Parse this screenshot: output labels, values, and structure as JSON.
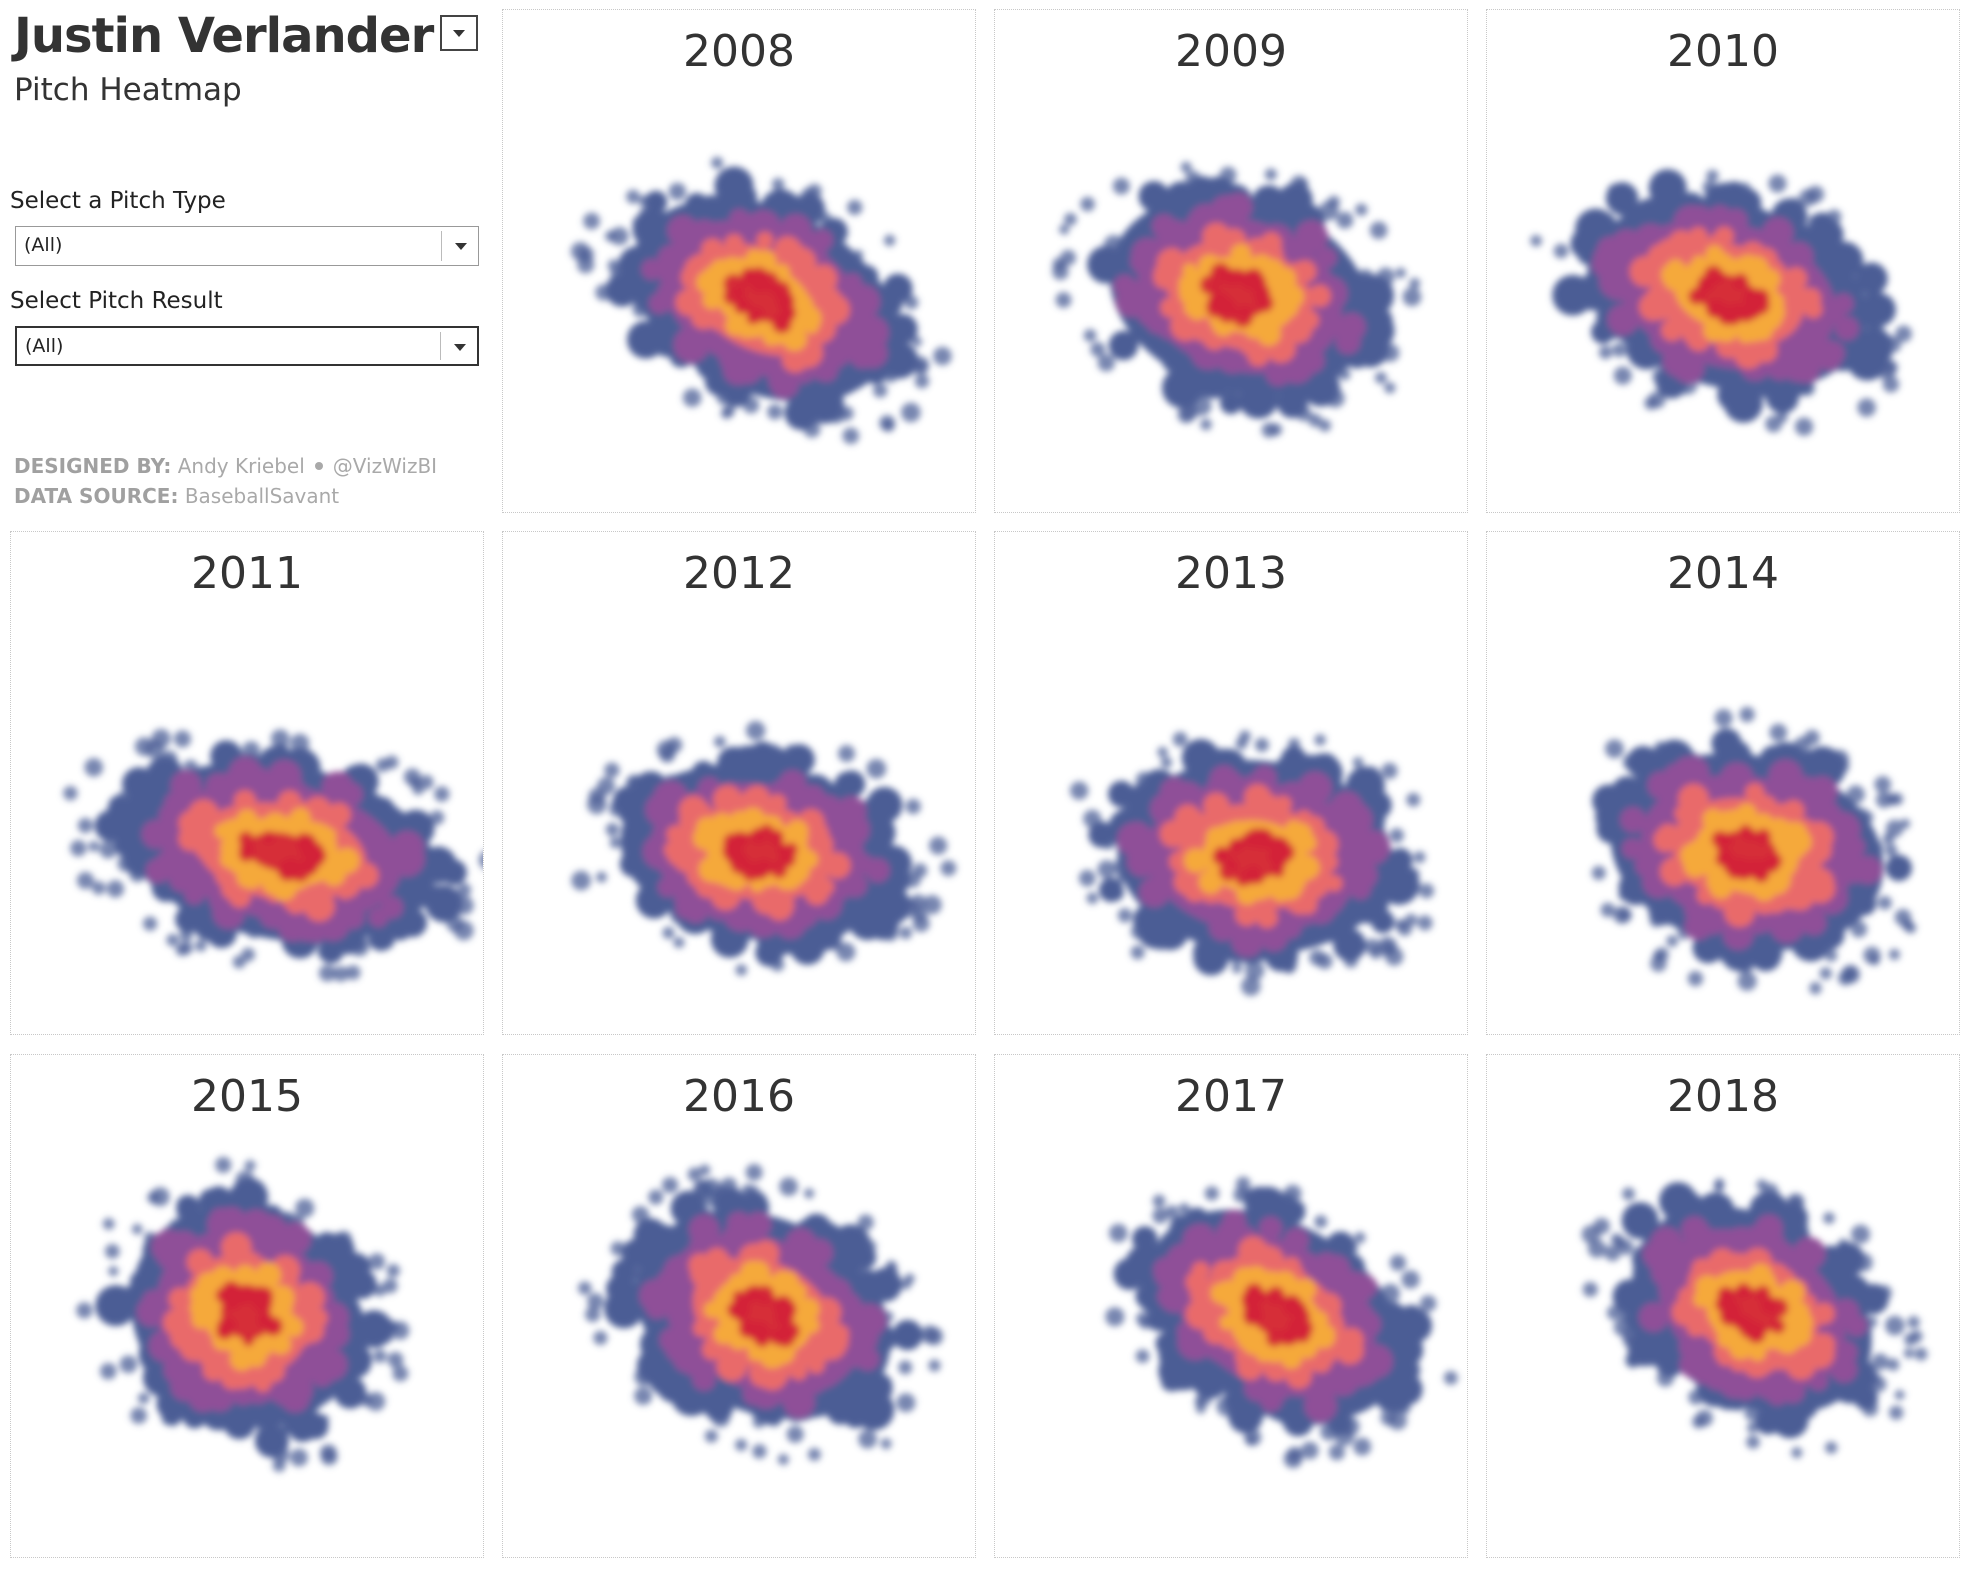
{
  "header": {
    "title": "Justin Verlander",
    "subtitle": "Pitch Heatmap"
  },
  "filters": {
    "pitch_type_label": "Select a Pitch Type",
    "pitch_type_value": "(All)",
    "pitch_result_label": "Select Pitch Result",
    "pitch_result_value": "(All)"
  },
  "credits": {
    "designed_by_label": "DESIGNED BY:",
    "designer": "Andy Kriebel",
    "handle": "@VizWizBI",
    "data_source_label": "DATA SOURCE:",
    "data_source": "BaseballSavant"
  },
  "colors": {
    "outer": "#4b5d95",
    "mid": "#8f4f98",
    "warm": "#e96b6b",
    "hot": "#f5a93b",
    "core": "#d3203a"
  },
  "panels": [
    {
      "year": "2008"
    },
    {
      "year": "2009"
    },
    {
      "year": "2010"
    },
    {
      "year": "2011"
    },
    {
      "year": "2012"
    },
    {
      "year": "2013"
    },
    {
      "year": "2014"
    },
    {
      "year": "2015"
    },
    {
      "year": "2016"
    },
    {
      "year": "2017"
    },
    {
      "year": "2018"
    }
  ]
}
